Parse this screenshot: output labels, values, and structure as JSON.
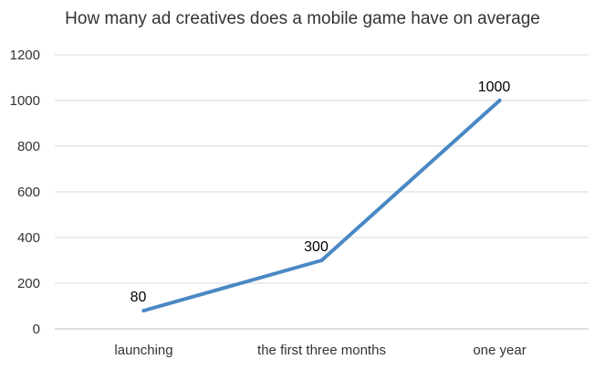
{
  "chart_data": {
    "type": "line",
    "title": "How many ad creatives does a mobile game have on average",
    "categories": [
      "launching",
      "the first three months",
      "one year"
    ],
    "series": [
      {
        "values": [
          80,
          300,
          1000
        ],
        "data_labels": [
          "80",
          "300",
          "1000"
        ]
      }
    ],
    "ylim": [
      0,
      1200
    ],
    "yticks": [
      "0",
      "200",
      "400",
      "600",
      "800",
      "1000",
      "1200"
    ],
    "xlabel": "",
    "ylabel": "",
    "grid": true,
    "legend": "none",
    "colors": {
      "line": "#4a88c4",
      "grid": "#d9d9d9",
      "axis": "#bfbfbf",
      "text": "#333333"
    }
  }
}
